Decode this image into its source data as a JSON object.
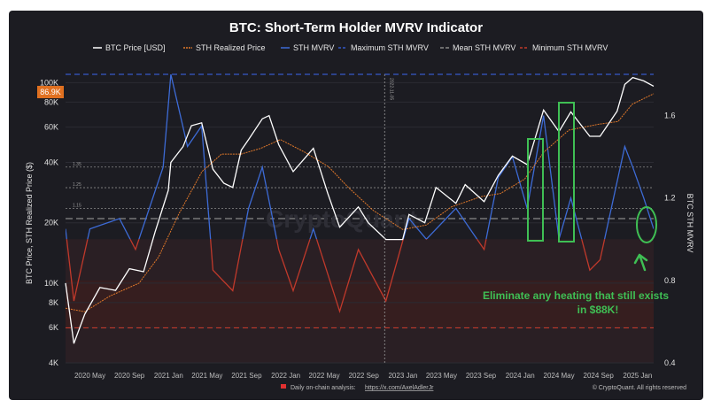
{
  "chart_data": {
    "type": "line",
    "title": "BTC: Short-Term Holder MVRV Indicator",
    "y_left_label": "BTC Price, STH Realized Price ($)",
    "y_right_label": "BTC STH MVRV",
    "y_left_scale": "log",
    "y_left_range": [
      4000,
      110000
    ],
    "y_left_ticks": [
      "4K",
      "6K",
      "8K",
      "10K",
      "20K",
      "40K",
      "60K",
      "80K",
      "100K"
    ],
    "y_right_range": [
      0.4,
      1.8
    ],
    "y_right_ticks": [
      "0.4",
      "0.8",
      "1.2",
      "1.6"
    ],
    "x_range": [
      "2020-02-15",
      "2025-02-20"
    ],
    "x_ticks": [
      "2020 May",
      "2020 Sep",
      "2021 Jan",
      "2021 May",
      "2021 Sep",
      "2022 Jan",
      "2022 May",
      "2022 Sep",
      "2023 Jan",
      "2023 May",
      "2023 Sep",
      "2024 Jan",
      "2024 May",
      "2024 Sep",
      "2025 Jan"
    ],
    "legend_position": "top",
    "series": [
      {
        "name": "BTC Price [USD]",
        "color": "#ffffff",
        "axis": "left",
        "x": [
          "2020-02-15",
          "2020-03-12",
          "2020-04-15",
          "2020-06-01",
          "2020-07-20",
          "2020-09-01",
          "2020-10-15",
          "2020-11-20",
          "2020-12-31",
          "2021-01-08",
          "2021-02-15",
          "2021-03-13",
          "2021-04-14",
          "2021-05-19",
          "2021-06-22",
          "2021-07-20",
          "2021-08-15",
          "2021-09-07",
          "2021-10-20",
          "2021-11-10",
          "2021-12-10",
          "2022-01-24",
          "2022-03-28",
          "2022-05-12",
          "2022-06-18",
          "2022-08-15",
          "2022-09-15",
          "2022-11-09",
          "2022-12-31",
          "2023-01-20",
          "2023-03-10",
          "2023-04-14",
          "2023-06-15",
          "2023-07-14",
          "2023-09-11",
          "2023-10-25",
          "2023-12-08",
          "2024-01-23",
          "2024-03-14",
          "2024-05-01",
          "2024-06-07",
          "2024-08-05",
          "2024-09-06",
          "2024-10-29",
          "2024-11-22",
          "2024-12-17",
          "2025-01-20",
          "2025-02-20"
        ],
        "values": [
          10000,
          5000,
          7000,
          9500,
          9200,
          11800,
          11400,
          18000,
          29000,
          40000,
          48000,
          61000,
          63000,
          37000,
          31500,
          30000,
          46000,
          52000,
          66000,
          68500,
          49000,
          36000,
          47000,
          28000,
          19000,
          24000,
          20000,
          16500,
          16500,
          22000,
          20000,
          30000,
          25000,
          31000,
          25500,
          34500,
          43000,
          39000,
          73000,
          57000,
          71500,
          54000,
          54000,
          72000,
          98000,
          106000,
          102000,
          96000
        ]
      },
      {
        "name": "STH Realized Price",
        "color": "#e0782a",
        "axis": "left",
        "x": [
          "2020-02-15",
          "2020-04-15",
          "2020-07-01",
          "2020-10-01",
          "2020-12-01",
          "2021-02-01",
          "2021-04-15",
          "2021-06-15",
          "2021-08-15",
          "2021-10-15",
          "2021-12-15",
          "2022-03-01",
          "2022-05-15",
          "2022-07-15",
          "2022-10-01",
          "2023-01-01",
          "2023-03-15",
          "2023-06-01",
          "2023-09-01",
          "2023-11-01",
          "2024-01-15",
          "2024-03-15",
          "2024-06-01",
          "2024-09-01",
          "2024-11-01",
          "2024-12-15",
          "2025-02-20"
        ],
        "values": [
          7500,
          7200,
          8600,
          10000,
          13500,
          22000,
          36000,
          44000,
          44000,
          47000,
          52000,
          45000,
          38000,
          30000,
          23000,
          18500,
          19500,
          24000,
          27000,
          28000,
          33000,
          45000,
          58000,
          62000,
          64000,
          78000,
          88000
        ]
      },
      {
        "name": "STH MVRV",
        "color": "#3d6bd6",
        "axis": "right",
        "x": [
          "2020-02-15",
          "2020-03-12",
          "2020-05-01",
          "2020-08-01",
          "2020-09-20",
          "2020-12-15",
          "2021-01-08",
          "2021-03-01",
          "2021-04-14",
          "2021-05-19",
          "2021-07-20",
          "2021-09-07",
          "2021-10-20",
          "2021-12-10",
          "2022-01-24",
          "2022-03-28",
          "2022-06-18",
          "2022-08-15",
          "2022-11-09",
          "2023-01-20",
          "2023-03-15",
          "2023-06-15",
          "2023-09-11",
          "2023-10-25",
          "2023-12-08",
          "2024-01-23",
          "2024-03-14",
          "2024-05-01",
          "2024-06-07",
          "2024-08-05",
          "2024-09-06",
          "2024-11-22",
          "2024-12-17",
          "2025-01-20",
          "2025-02-20"
        ],
        "values": [
          1.05,
          0.7,
          1.05,
          1.1,
          0.95,
          1.35,
          1.8,
          1.45,
          1.55,
          0.85,
          0.75,
          1.15,
          1.35,
          0.95,
          0.75,
          1.05,
          0.65,
          0.95,
          0.7,
          1.1,
          1.0,
          1.15,
          0.95,
          1.3,
          1.4,
          1.15,
          1.6,
          1.0,
          1.2,
          0.85,
          0.9,
          1.45,
          1.35,
          1.2,
          1.05
        ]
      },
      {
        "name": "Maximum STH MVRV",
        "color": "#3558c8",
        "axis": "right",
        "value": 1.8
      },
      {
        "name": "Mean STH MVRV",
        "color": "#888888",
        "axis": "right",
        "value": 1.1
      },
      {
        "name": "Minimum STH MVRV",
        "color": "#c0392b",
        "axis": "right",
        "value": 0.57
      }
    ],
    "bands_right_axis": [
      "1.35",
      "1.25",
      "1.15"
    ],
    "price_tag": "86.9K",
    "vline_label": "2022-11-05",
    "watermark": "CryptoQuant",
    "annotation": [
      "Eliminate any heating that still exists",
      "in $88K!"
    ],
    "footer_left": "Daily on-chain analysis:",
    "footer_link": "https://x.com/AxelAdlerJr",
    "footer_right": "© CryptoQuant. All rights reserved"
  },
  "colors": {
    "background": "#1c1c22",
    "price": "#ffffff",
    "sth_realized": "#e0782a",
    "mvrv": "#3d6bd6",
    "mvrv_below_one": "#c0392b",
    "max_line": "#3558c8",
    "mean_line": "#888888",
    "min_line": "#c0392b",
    "annotation": "#3fbf54",
    "price_tag_bg": "#e07020"
  }
}
